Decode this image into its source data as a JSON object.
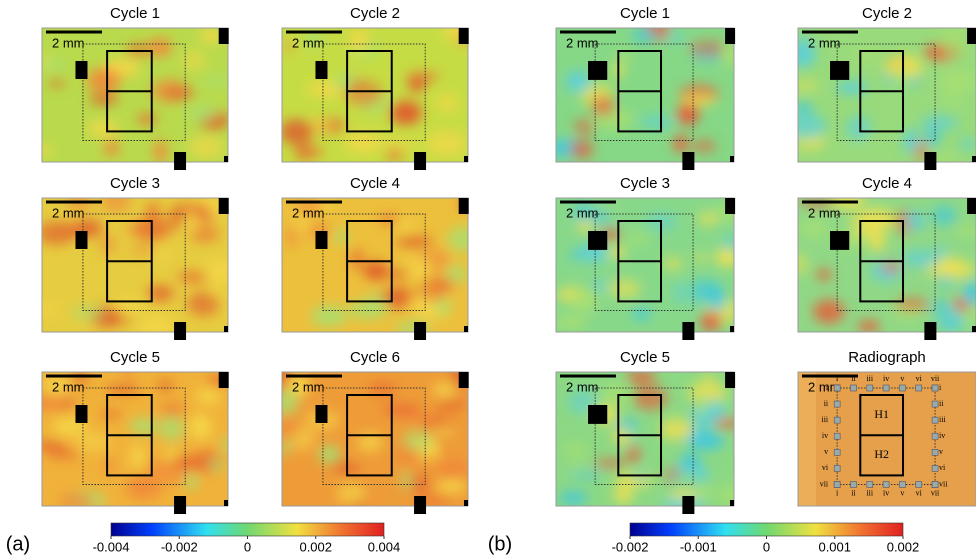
{
  "panels": [
    {
      "label": "(a)",
      "maps": [
        {
          "title": "Cycle 1",
          "scale": "2 mm",
          "color": "#b9da4c"
        },
        {
          "title": "Cycle 2",
          "scale": "2 mm",
          "color": "#c6dc44"
        },
        {
          "title": "Cycle 3",
          "scale": "2 mm",
          "color": "#e6cc40"
        },
        {
          "title": "Cycle 4",
          "scale": "2 mm",
          "color": "#ecc03c"
        },
        {
          "title": "Cycle 5",
          "scale": "2 mm",
          "color": "#f0b23a"
        },
        {
          "title": "Cycle 6",
          "scale": "2 mm",
          "color": "#ee9c38"
        }
      ],
      "colorbar": {
        "lim": [
          -0.004,
          0.004
        ],
        "ticks": [
          -0.004,
          -0.002,
          0,
          0.002,
          0.004
        ]
      }
    },
    {
      "label": "(b)",
      "maps": [
        {
          "title": "Cycle 1",
          "scale": "2 mm",
          "color": "#86d886"
        },
        {
          "title": "Cycle 2",
          "scale": "2 mm",
          "color": "#98da7c"
        },
        {
          "title": "Cycle 3",
          "scale": "2 mm",
          "color": "#88d88a"
        },
        {
          "title": "Cycle 4",
          "scale": "2 mm",
          "color": "#90d886"
        },
        {
          "title": "Cycle 5",
          "scale": "2 mm",
          "color": "#8cd884"
        },
        {
          "title": "Radiograph",
          "scale": "2 mm",
          "color": "#e6a04c",
          "holes": [
            "H1",
            "H2"
          ],
          "markers": [
            "i",
            "ii",
            "iii",
            "iv",
            "v",
            "vi",
            "vii"
          ]
        }
      ],
      "colorbar": {
        "lim": [
          -0.002,
          0.002
        ],
        "ticks": [
          -0.002,
          -0.001,
          0,
          0.001,
          0.002
        ]
      }
    }
  ]
}
